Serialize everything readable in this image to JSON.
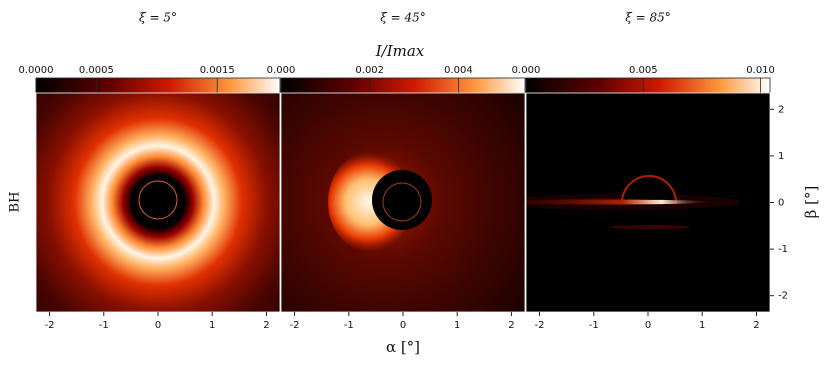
{
  "figure": {
    "colorbar_label": "I/Imax",
    "x_label": "α [°]",
    "y_label": "β [°]",
    "row_label": "BH"
  },
  "chart_data": [
    {
      "type": "image",
      "title": "ξ = 5°",
      "clim": [
        0,
        0.00202
      ],
      "cticks": [
        {
          "value": 0,
          "label": "0.0000"
        },
        0.0005,
        0.0015
      ],
      "xlim": [
        -2.25,
        2.25
      ],
      "xticks": [
        -2,
        -1,
        0,
        1,
        2
      ],
      "ylim": [
        -2.35,
        2.35
      ]
    },
    {
      "type": "image",
      "title": "ξ = 45°",
      "clim": [
        0,
        0.0055
      ],
      "cticks": [
        {
          "value": 0,
          "label": "0.000"
        },
        0.002,
        0.004
      ],
      "xlim": [
        -2.25,
        2.25
      ],
      "xticks": [
        -2,
        -1,
        0,
        1,
        2
      ],
      "ylim": [
        -2.35,
        2.35
      ]
    },
    {
      "type": "image",
      "title": "ξ = 85°",
      "clim": [
        0,
        0.0104
      ],
      "cticks": [
        {
          "value": 0,
          "label": "0.000"
        },
        0.005,
        {
          "value": 0.01,
          "label": "0.010"
        }
      ],
      "xlim": [
        -2.25,
        2.25
      ],
      "xticks": [
        -2,
        -1,
        0,
        1,
        2
      ],
      "ylim": [
        -2.35,
        2.35
      ],
      "yticks": [
        -2,
        -1,
        0,
        1,
        2
      ]
    }
  ]
}
